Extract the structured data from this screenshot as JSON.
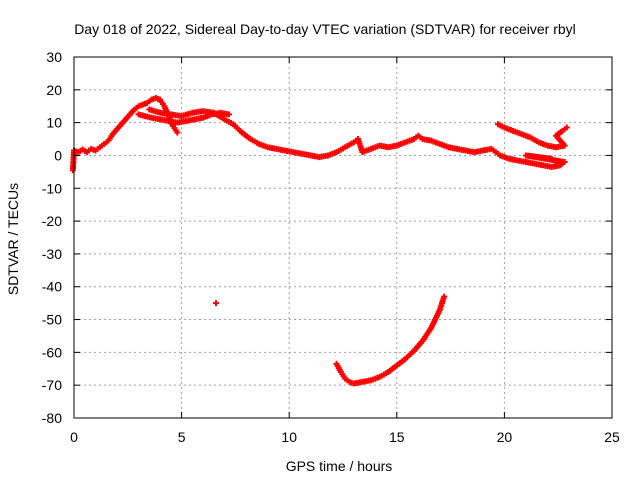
{
  "chart_data": {
    "type": "scatter",
    "title": "Day 018 of 2022, Sidereal Day-to-day VTEC variation (SDTVAR) for receiver rbyl",
    "xlabel": "GPS time / hours",
    "ylabel": "SDTVAR / TECUs",
    "xlim": [
      0,
      25
    ],
    "ylim": [
      -80,
      30
    ],
    "xticks": [
      0,
      5,
      10,
      15,
      20,
      25
    ],
    "yticks": [
      -80,
      -70,
      -60,
      -50,
      -40,
      -30,
      -20,
      -10,
      0,
      10,
      20,
      30
    ],
    "grid": true,
    "marker": "+",
    "series": [
      {
        "name": "main-band",
        "color": "#ff0000",
        "points": [
          [
            -0.05,
            -4.5
          ],
          [
            0.0,
            1.5
          ],
          [
            0.2,
            1.0
          ],
          [
            0.4,
            1.8
          ],
          [
            0.6,
            1.0
          ],
          [
            0.8,
            2.0
          ],
          [
            1.0,
            1.5
          ],
          [
            1.2,
            2.5
          ],
          [
            1.4,
            3.5
          ],
          [
            1.6,
            4.5
          ],
          [
            1.8,
            6.5
          ],
          [
            2.0,
            8.0
          ],
          [
            2.2,
            9.5
          ],
          [
            2.4,
            11.0
          ],
          [
            2.6,
            12.5
          ],
          [
            2.8,
            14.0
          ],
          [
            3.0,
            15.0
          ],
          [
            3.2,
            15.5
          ],
          [
            3.4,
            16.0
          ],
          [
            3.6,
            17.0
          ],
          [
            3.8,
            17.5
          ],
          [
            4.0,
            17.0
          ],
          [
            4.2,
            15.0
          ],
          [
            4.4,
            12.0
          ],
          [
            4.6,
            9.0
          ],
          [
            4.8,
            7.0
          ],
          [
            3.0,
            12.5
          ],
          [
            3.3,
            12.0
          ],
          [
            3.6,
            11.5
          ],
          [
            4.0,
            11.0
          ],
          [
            4.4,
            10.5
          ],
          [
            4.8,
            10.0
          ],
          [
            5.2,
            10.5
          ],
          [
            5.6,
            11.0
          ],
          [
            6.0,
            11.5
          ],
          [
            6.4,
            12.5
          ],
          [
            6.8,
            13.0
          ],
          [
            7.2,
            12.5
          ],
          [
            3.5,
            14.0
          ],
          [
            4.0,
            13.0
          ],
          [
            4.5,
            12.5
          ],
          [
            5.0,
            12.0
          ],
          [
            5.5,
            13.0
          ],
          [
            6.0,
            13.5
          ],
          [
            6.5,
            13.0
          ],
          [
            7.0,
            11.0
          ],
          [
            7.4,
            9.5
          ],
          [
            7.8,
            7.0
          ],
          [
            8.2,
            5.0
          ],
          [
            8.6,
            3.5
          ],
          [
            9.0,
            2.5
          ],
          [
            9.4,
            2.0
          ],
          [
            9.8,
            1.5
          ],
          [
            10.2,
            1.0
          ],
          [
            10.6,
            0.5
          ],
          [
            11.0,
            0.0
          ],
          [
            11.4,
            -0.5
          ],
          [
            11.8,
            0.0
          ],
          [
            12.2,
            1.0
          ],
          [
            12.6,
            2.5
          ],
          [
            13.0,
            4.0
          ],
          [
            13.2,
            5.0
          ],
          [
            13.4,
            1.0
          ],
          [
            13.8,
            2.0
          ],
          [
            14.2,
            3.0
          ],
          [
            14.6,
            2.5
          ],
          [
            15.0,
            3.0
          ],
          [
            15.4,
            4.0
          ],
          [
            15.8,
            5.0
          ],
          [
            16.0,
            6.0
          ],
          [
            16.2,
            5.0
          ],
          [
            16.6,
            4.5
          ],
          [
            17.0,
            3.5
          ],
          [
            17.4,
            2.5
          ],
          [
            17.8,
            2.0
          ],
          [
            18.2,
            1.5
          ],
          [
            18.6,
            1.0
          ],
          [
            19.0,
            1.5
          ],
          [
            19.4,
            2.0
          ],
          [
            19.6,
            1.0
          ],
          [
            19.8,
            0.0
          ],
          [
            20.2,
            -1.0
          ],
          [
            20.6,
            -1.5
          ],
          [
            21.0,
            -2.0
          ],
          [
            21.4,
            -2.5
          ],
          [
            21.8,
            -3.0
          ],
          [
            22.2,
            -3.5
          ],
          [
            22.6,
            -3.0
          ],
          [
            22.8,
            -2.0
          ],
          [
            21.0,
            0.0
          ],
          [
            21.6,
            -0.5
          ],
          [
            22.2,
            -1.0
          ]
        ]
      },
      {
        "name": "upper-right-arc",
        "color": "#ff0000",
        "points": [
          [
            19.7,
            9.5
          ],
          [
            20.0,
            8.5
          ],
          [
            20.4,
            7.5
          ],
          [
            20.8,
            6.5
          ],
          [
            21.2,
            5.5
          ],
          [
            21.6,
            4.0
          ],
          [
            22.0,
            3.0
          ],
          [
            22.4,
            2.5
          ],
          [
            22.8,
            3.0
          ],
          [
            22.4,
            6.0
          ],
          [
            22.7,
            7.5
          ],
          [
            22.9,
            8.5
          ]
        ]
      },
      {
        "name": "outlier",
        "color": "#ff0000",
        "points": [
          [
            6.6,
            -45.0
          ]
        ]
      },
      {
        "name": "low-arc",
        "color": "#ff0000",
        "points": [
          [
            12.2,
            -63.5
          ],
          [
            12.4,
            -66.0
          ],
          [
            12.6,
            -68.0
          ],
          [
            12.8,
            -69.0
          ],
          [
            13.0,
            -69.5
          ],
          [
            13.4,
            -69.0
          ],
          [
            13.8,
            -68.5
          ],
          [
            14.2,
            -67.5
          ],
          [
            14.6,
            -66.0
          ],
          [
            15.0,
            -64.0
          ],
          [
            15.4,
            -62.0
          ],
          [
            15.8,
            -59.5
          ],
          [
            16.2,
            -56.5
          ],
          [
            16.6,
            -52.5
          ],
          [
            17.0,
            -47.0
          ],
          [
            17.2,
            -43.0
          ]
        ]
      }
    ]
  }
}
